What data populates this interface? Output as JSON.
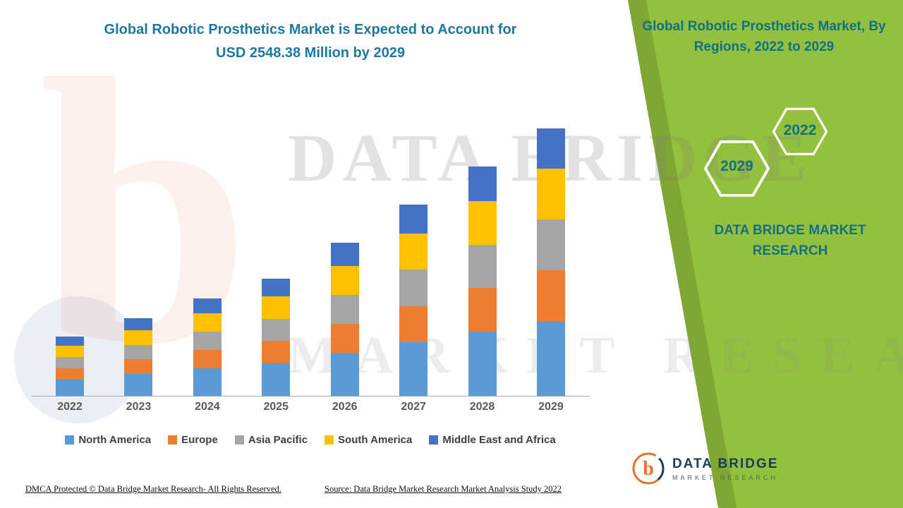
{
  "header": {
    "title_line1": "Global Robotic Prosthetics Market is Expected to Account for",
    "title_line2": "USD 2548.38 Million by 2029"
  },
  "panel": {
    "title": "Global Robotic Prosthetics Market, By Regions, 2022 to 2029",
    "hexagon_year_left": "2029",
    "hexagon_year_right": "2022",
    "brand_line1": "DATA BRIDGE MARKET",
    "brand_line2": "RESEARCH",
    "colors": {
      "green": "#94c13d",
      "green_dark": "#7fa733",
      "teal": "#136f83"
    }
  },
  "chart_data": {
    "type": "bar",
    "stacked": true,
    "title": "Global Robotic Prosthetics Market is Expected to Account for USD 2548.38 Million by 2029",
    "unit": "USD Million",
    "legend_position": "bottom",
    "xlabel": "",
    "ylabel": "",
    "axis_ticks_visible": false,
    "categories": [
      "2022",
      "2023",
      "2024",
      "2025",
      "2026",
      "2027",
      "2028",
      "2029"
    ],
    "series": [
      {
        "name": "North America",
        "color": "#5b9bd5",
        "values": [
          158,
          207,
          260,
          312,
          409,
          510,
          612,
          713.38
        ]
      },
      {
        "name": "Europe",
        "color": "#ed7d31",
        "values": [
          107,
          140,
          176,
          212,
          277,
          346,
          415,
          484
        ]
      },
      {
        "name": "Asia Pacific",
        "color": "#a5a5a5",
        "values": [
          107,
          140,
          176,
          212,
          277,
          346,
          415,
          484
        ]
      },
      {
        "name": "South America",
        "color": "#ffc000",
        "values": [
          107,
          140,
          176,
          212,
          277,
          346,
          415,
          484
        ]
      },
      {
        "name": "Middle East and Africa",
        "color": "#4472c4",
        "values": [
          85,
          111,
          139,
          167,
          219,
          273,
          328,
          383
        ]
      }
    ],
    "totals": [
      564,
      738,
      927,
      1115,
      1459,
      1821,
      2185,
      2548.38
    ]
  },
  "watermark": {
    "letter": "b",
    "line1": "DATA BRIDGE",
    "line2": "MARKET RESEARCH"
  },
  "logo": {
    "letter": "b",
    "name": "DATA BRIDGE",
    "tagline": "MARKET RESEARCH"
  },
  "footer": {
    "dmca": "DMCA Protected © Data Bridge Market Research- All Rights Reserved.",
    "source": "Source: Data Bridge Market Research Market Analysis Study 2022"
  }
}
